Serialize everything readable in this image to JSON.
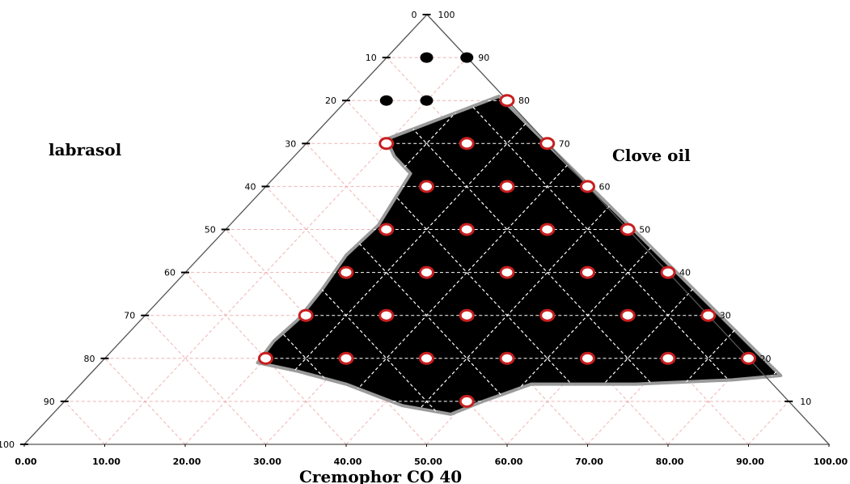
{
  "chart_data": {
    "type": "scatter",
    "subtype": "ternary",
    "axis_titles": {
      "left": "labrasol",
      "right": "Clove oil",
      "bottom": "Cremophor CO 40"
    },
    "left_ticks": [
      "0",
      "10",
      "20",
      "30",
      "40",
      "50",
      "60",
      "70",
      "80",
      "90",
      "100"
    ],
    "right_ticks": [
      "100",
      "90",
      "80",
      "70",
      "60",
      "50",
      "40",
      "30",
      "20",
      "10"
    ],
    "bottom_ticks": [
      "0.00",
      "10.00",
      "20.00",
      "30.00",
      "40.00",
      "50.00",
      "60.00",
      "70.00",
      "80.00",
      "90.00",
      "100.00"
    ],
    "colors": {
      "region_fill": "#000000",
      "region_border": "#9a9a9a",
      "grid": "#f0b4b4",
      "open_marker_stroke": "#c81e1e",
      "filled_marker": "#000000"
    },
    "series": [
      {
        "marker": "filled",
        "points": [
          {
            "cremophor": 50,
            "labrasol": 10
          },
          {
            "cremophor": 55,
            "labrasol": 10
          },
          {
            "cremophor": 45,
            "labrasol": 20
          },
          {
            "cremophor": 50,
            "labrasol": 20
          }
        ]
      },
      {
        "marker": "open",
        "points": [
          {
            "cremophor": 60,
            "labrasol": 20
          },
          {
            "cremophor": 45,
            "labrasol": 30
          },
          {
            "cremophor": 55,
            "labrasol": 30
          },
          {
            "cremophor": 65,
            "labrasol": 30
          },
          {
            "cremophor": 50,
            "labrasol": 40
          },
          {
            "cremophor": 60,
            "labrasol": 40
          },
          {
            "cremophor": 70,
            "labrasol": 40
          },
          {
            "cremophor": 45,
            "labrasol": 50
          },
          {
            "cremophor": 55,
            "labrasol": 50
          },
          {
            "cremophor": 65,
            "labrasol": 50
          },
          {
            "cremophor": 75,
            "labrasol": 50
          },
          {
            "cremophor": 40,
            "labrasol": 60
          },
          {
            "cremophor": 50,
            "labrasol": 60
          },
          {
            "cremophor": 60,
            "labrasol": 60
          },
          {
            "cremophor": 70,
            "labrasol": 60
          },
          {
            "cremophor": 80,
            "labrasol": 60
          },
          {
            "cremophor": 35,
            "labrasol": 70
          },
          {
            "cremophor": 45,
            "labrasol": 70
          },
          {
            "cremophor": 55,
            "labrasol": 70
          },
          {
            "cremophor": 65,
            "labrasol": 70
          },
          {
            "cremophor": 75,
            "labrasol": 70
          },
          {
            "cremophor": 85,
            "labrasol": 70
          },
          {
            "cremophor": 30,
            "labrasol": 80
          },
          {
            "cremophor": 40,
            "labrasol": 80
          },
          {
            "cremophor": 50,
            "labrasol": 80
          },
          {
            "cremophor": 60,
            "labrasol": 80
          },
          {
            "cremophor": 70,
            "labrasol": 80
          },
          {
            "cremophor": 80,
            "labrasol": 80
          },
          {
            "cremophor": 90,
            "labrasol": 80
          },
          {
            "cremophor": 55,
            "labrasol": 90
          }
        ]
      }
    ],
    "region": {
      "label": "",
      "boundary": [
        {
          "cremophor": 59,
          "labrasol": 19
        },
        {
          "cremophor": 52,
          "labrasol": 24
        },
        {
          "cremophor": 45,
          "labrasol": 29
        },
        {
          "cremophor": 46,
          "labrasol": 33
        },
        {
          "cremophor": 48,
          "labrasol": 37
        },
        {
          "cremophor": 46,
          "labrasol": 43
        },
        {
          "cremophor": 44,
          "labrasol": 49
        },
        {
          "cremophor": 40,
          "labrasol": 56
        },
        {
          "cremophor": 37,
          "labrasol": 64
        },
        {
          "cremophor": 34,
          "labrasol": 71
        },
        {
          "cremophor": 31,
          "labrasol": 76
        },
        {
          "cremophor": 29,
          "labrasol": 81
        },
        {
          "cremophor": 34,
          "labrasol": 83
        },
        {
          "cremophor": 40,
          "labrasol": 86
        },
        {
          "cremophor": 47,
          "labrasol": 91
        },
        {
          "cremophor": 53,
          "labrasol": 93
        },
        {
          "cremophor": 57,
          "labrasol": 90
        },
        {
          "cremophor": 63,
          "labrasol": 86
        },
        {
          "cremophor": 76,
          "labrasol": 86
        },
        {
          "cremophor": 88,
          "labrasol": 85
        },
        {
          "cremophor": 94,
          "labrasol": 84
        }
      ]
    }
  }
}
